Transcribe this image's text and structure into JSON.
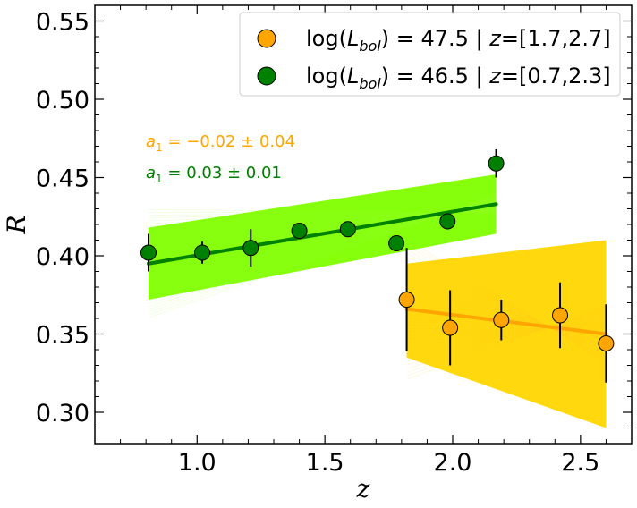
{
  "chart_data": {
    "type": "scatter",
    "xlabel": "z",
    "ylabel": "R",
    "xlim": [
      0.6,
      2.7
    ],
    "ylim": [
      0.28,
      0.56
    ],
    "x_ticks": [
      1.0,
      1.5,
      2.0,
      2.5
    ],
    "x_tick_labels": [
      "1.0",
      "1.5",
      "2.0",
      "2.5"
    ],
    "y_ticks": [
      0.3,
      0.35,
      0.4,
      0.45,
      0.5,
      0.55
    ],
    "y_tick_labels": [
      "0.30",
      "0.35",
      "0.40",
      "0.45",
      "0.50",
      "0.55"
    ],
    "legend_position": "top-right",
    "series": [
      {
        "name": "log(L_bol) = 47.5 | z=[1.7,2.7]",
        "legend": {
          "pre": "log(",
          "var": "L",
          "sub": "bol",
          "mid": ") = 47.5 | ",
          "zvar": "z",
          "post": "=[1.7,2.7]"
        },
        "marker_color": "#FFA500",
        "band_color": "#FFD700",
        "band_edge_color": "#FFC020",
        "fit_color": "#FFA500",
        "annotation": {
          "prefix": "a",
          "sub": "1",
          "text": " = −0.02 ± 0.04"
        },
        "fit": {
          "x": [
            1.82,
            2.6
          ],
          "y": [
            0.366,
            0.35
          ]
        },
        "band": {
          "x": [
            1.82,
            2.6
          ],
          "upper": [
            0.395,
            0.41
          ],
          "lower": [
            0.335,
            0.29
          ]
        },
        "x": [
          1.82,
          1.99,
          2.19,
          2.42,
          2.6
        ],
        "y": [
          0.372,
          0.354,
          0.359,
          0.362,
          0.344
        ],
        "err": [
          0.033,
          0.024,
          0.013,
          0.021,
          0.025
        ]
      },
      {
        "name": "log(L_bol) = 46.5 | z=[0.7,2.3]",
        "legend": {
          "pre": "log(",
          "var": "L",
          "sub": "bol",
          "mid": ") = 46.5 | ",
          "zvar": "z",
          "post": "=[0.7,2.3]"
        },
        "marker_color": "#008000",
        "band_color": "#80FF00",
        "band_edge_color": "#99FF33",
        "fit_color": "#008000",
        "annotation": {
          "prefix": "a",
          "sub": "1",
          "text": " = 0.03 ± 0.01"
        },
        "fit": {
          "x": [
            0.81,
            2.17
          ],
          "y": [
            0.395,
            0.433
          ]
        },
        "band": {
          "x": [
            0.81,
            2.17
          ],
          "upper": [
            0.418,
            0.452
          ],
          "lower": [
            0.372,
            0.414
          ]
        },
        "x": [
          0.81,
          1.02,
          1.21,
          1.4,
          1.59,
          1.78,
          1.98,
          2.17
        ],
        "y": [
          0.402,
          0.402,
          0.405,
          0.416,
          0.417,
          0.408,
          0.422,
          0.459
        ],
        "err": [
          0.012,
          0.007,
          0.012,
          0.0,
          0.0,
          0.0,
          0.005,
          0.009
        ]
      }
    ]
  }
}
